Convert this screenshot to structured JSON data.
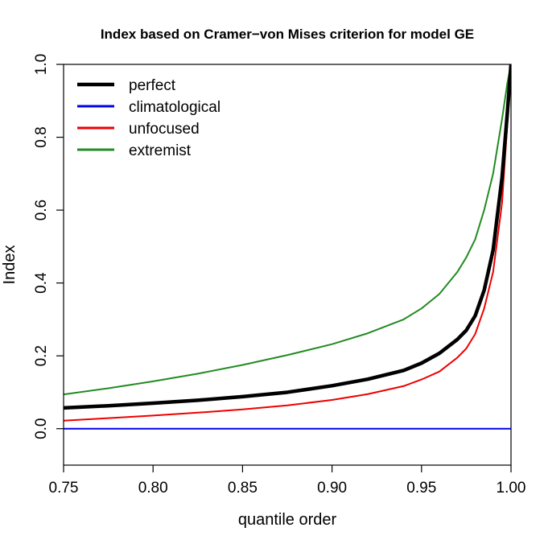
{
  "chart_data": {
    "type": "line",
    "title": "Index based on Cramer−von Mises criterion for model GE",
    "xlabel": "quantile order",
    "ylabel": "Index",
    "xlim": [
      0.75,
      1.0
    ],
    "ylim": [
      -0.1,
      1.0
    ],
    "grid": false,
    "legend_position": "top-left",
    "x_ticks": [
      "0.75",
      "0.80",
      "0.85",
      "0.90",
      "0.95",
      "1.00"
    ],
    "y_ticks": [
      "0.0",
      "0.2",
      "0.4",
      "0.6",
      "0.8",
      "1.0"
    ],
    "x": [
      0.75,
      0.775,
      0.8,
      0.825,
      0.85,
      0.875,
      0.9,
      0.92,
      0.94,
      0.95,
      0.96,
      0.97,
      0.975,
      0.98,
      0.985,
      0.99,
      0.995,
      0.998,
      1.0
    ],
    "series": [
      {
        "name": "perfect",
        "color": "#000000",
        "line_width": 4.5,
        "values": [
          0.057,
          0.063,
          0.07,
          0.078,
          0.088,
          0.1,
          0.118,
          0.136,
          0.16,
          0.18,
          0.207,
          0.245,
          0.27,
          0.31,
          0.38,
          0.49,
          0.69,
          0.87,
          1.0
        ]
      },
      {
        "name": "climatological",
        "color": "#0000ee",
        "line_width": 2,
        "values": [
          0.0,
          0.0,
          0.0,
          0.0,
          0.0,
          0.0,
          0.0,
          0.0,
          0.0,
          0.0,
          0.0,
          0.0,
          0.0,
          0.0,
          0.0,
          0.0,
          0.0,
          0.0,
          0.0
        ]
      },
      {
        "name": "unfocused",
        "color": "#ee0000",
        "line_width": 2,
        "values": [
          0.022,
          0.029,
          0.036,
          0.044,
          0.053,
          0.064,
          0.079,
          0.095,
          0.117,
          0.135,
          0.157,
          0.195,
          0.22,
          0.26,
          0.33,
          0.43,
          0.62,
          0.84,
          1.0
        ]
      },
      {
        "name": "extremist",
        "color": "#228b22",
        "line_width": 2,
        "values": [
          0.094,
          0.111,
          0.13,
          0.151,
          0.175,
          0.202,
          0.232,
          0.262,
          0.3,
          0.33,
          0.37,
          0.43,
          0.47,
          0.52,
          0.6,
          0.7,
          0.85,
          0.95,
          1.0
        ]
      }
    ]
  }
}
